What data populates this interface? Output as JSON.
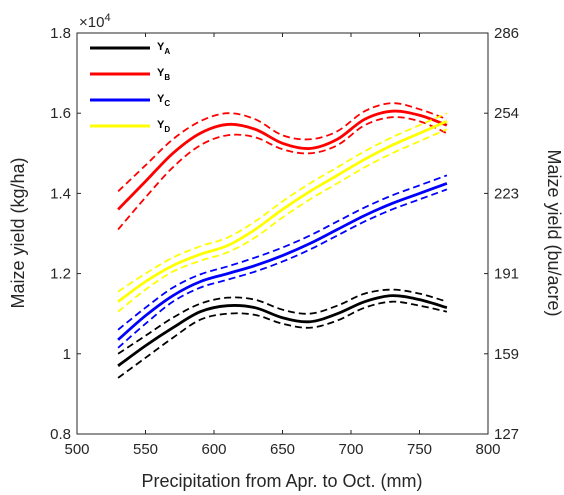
{
  "chart_data": {
    "type": "line",
    "xlabel": "Precipitation from Apr. to Oct. (mm)",
    "ylabel": "Maize yield (kg/ha)",
    "y2label": "Maize yield (bu/acre)",
    "y_exponent_label": "×10",
    "y_exponent_power": "4",
    "xlim": [
      500,
      800
    ],
    "ylim": [
      0.8,
      1.8
    ],
    "xticks": [
      "500",
      "550",
      "600",
      "650",
      "700",
      "750",
      "800"
    ],
    "xtick_values": [
      500,
      550,
      600,
      650,
      700,
      750,
      800
    ],
    "yticks": [
      "0.8",
      "1",
      "1.2",
      "1.4",
      "1.6",
      "1.8"
    ],
    "ytick_values": [
      0.8,
      1.0,
      1.2,
      1.4,
      1.6,
      1.8
    ],
    "y2ticks": [
      "127",
      "159",
      "191",
      "223",
      "254",
      "286"
    ],
    "x": [
      530,
      550,
      570,
      590,
      610,
      630,
      650,
      670,
      690,
      710,
      730,
      750,
      770
    ],
    "series": [
      {
        "name": "Y",
        "sub": "A",
        "color": "#000000",
        "values": [
          0.97,
          1.02,
          1.065,
          1.105,
          1.12,
          1.115,
          1.09,
          1.08,
          1.1,
          1.13,
          1.145,
          1.135,
          1.115
        ],
        "lower": [
          0.94,
          0.99,
          1.04,
          1.085,
          1.1,
          1.097,
          1.075,
          1.065,
          1.083,
          1.115,
          1.13,
          1.12,
          1.105
        ],
        "upper": [
          1.0,
          1.045,
          1.09,
          1.125,
          1.14,
          1.135,
          1.11,
          1.1,
          1.12,
          1.15,
          1.16,
          1.15,
          1.13
        ]
      },
      {
        "name": "Y",
        "sub": "B",
        "color": "#ff0000",
        "values": [
          1.36,
          1.43,
          1.5,
          1.55,
          1.572,
          1.56,
          1.525,
          1.512,
          1.535,
          1.585,
          1.605,
          1.595,
          1.57
        ],
        "lower": [
          1.31,
          1.39,
          1.465,
          1.52,
          1.545,
          1.54,
          1.51,
          1.5,
          1.52,
          1.57,
          1.59,
          1.58,
          1.55
        ],
        "upper": [
          1.405,
          1.47,
          1.535,
          1.58,
          1.6,
          1.585,
          1.545,
          1.535,
          1.555,
          1.605,
          1.625,
          1.61,
          1.585
        ]
      },
      {
        "name": "Y",
        "sub": "C",
        "color": "#0000ff",
        "values": [
          1.035,
          1.095,
          1.145,
          1.18,
          1.2,
          1.22,
          1.245,
          1.275,
          1.31,
          1.345,
          1.375,
          1.4,
          1.425
        ],
        "lower": [
          1.015,
          1.075,
          1.13,
          1.165,
          1.185,
          1.205,
          1.23,
          1.26,
          1.295,
          1.33,
          1.36,
          1.385,
          1.41
        ],
        "upper": [
          1.06,
          1.115,
          1.165,
          1.198,
          1.218,
          1.24,
          1.265,
          1.295,
          1.33,
          1.365,
          1.395,
          1.42,
          1.445
        ]
      },
      {
        "name": "Y",
        "sub": "D",
        "color": "#ffff00",
        "values": [
          1.13,
          1.18,
          1.22,
          1.248,
          1.27,
          1.31,
          1.36,
          1.405,
          1.445,
          1.485,
          1.52,
          1.55,
          1.58
        ],
        "lower": [
          1.105,
          1.16,
          1.205,
          1.232,
          1.253,
          1.29,
          1.34,
          1.385,
          1.425,
          1.465,
          1.5,
          1.53,
          1.56
        ],
        "upper": [
          1.155,
          1.2,
          1.24,
          1.268,
          1.29,
          1.33,
          1.38,
          1.425,
          1.465,
          1.505,
          1.54,
          1.57,
          1.6
        ]
      }
    ],
    "legend_position": "top-left",
    "grid": false
  }
}
